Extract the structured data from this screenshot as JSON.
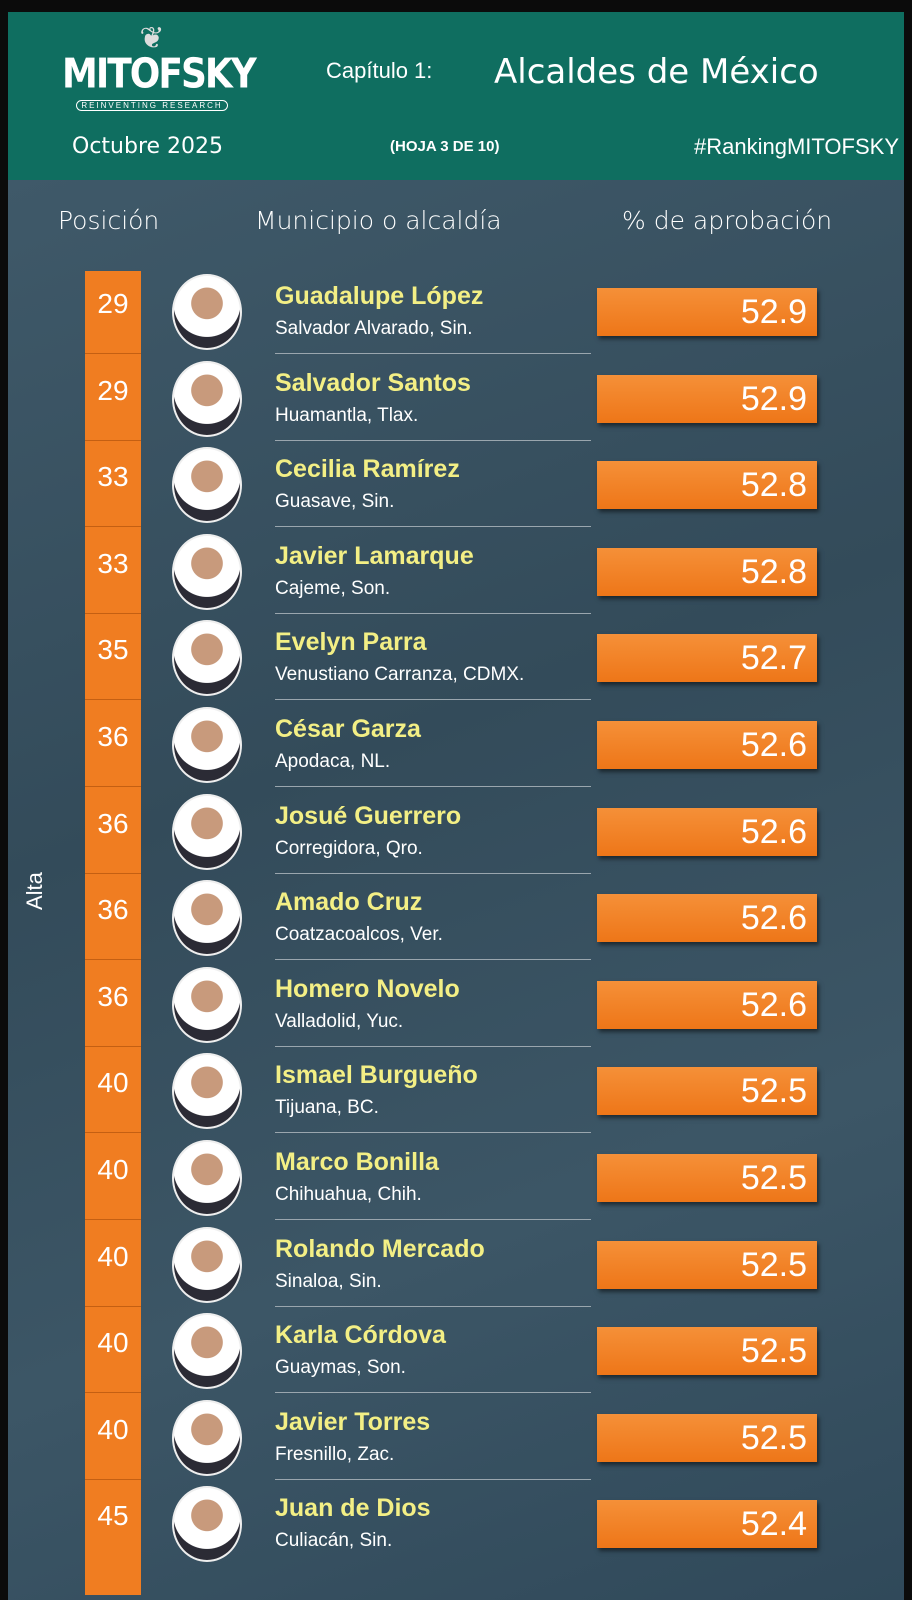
{
  "header": {
    "logo_text": "MITOFSKY",
    "logo_tagline": "REINVENTING RESEARCH",
    "chapter": "Capítulo 1:",
    "title": "Alcaldes de México",
    "date": "Octubre  2025",
    "sheet": "(HOJA 3 DE 10)",
    "hashtag": "#RankingMITOFSKY"
  },
  "columns": {
    "position": "Posición",
    "municipality": "Municipio o alcaldía",
    "approval": "% de aprobación"
  },
  "side_label": "Alta",
  "colors": {
    "header": "#0f6e60",
    "accent": "#f07d21",
    "name": "#f3ef85"
  },
  "rows": [
    {
      "position": "29",
      "name": "Guadalupe López",
      "place": "Salvador Alvarado, Sin.",
      "approval": "52.9"
    },
    {
      "position": "29",
      "name": "Salvador Santos",
      "place": "Huamantla, Tlax.",
      "approval": "52.9"
    },
    {
      "position": "33",
      "name": "Cecilia Ramírez",
      "place": "Guasave, Sin.",
      "approval": "52.8"
    },
    {
      "position": "33",
      "name": "Javier Lamarque",
      "place": "Cajeme, Son.",
      "approval": "52.8"
    },
    {
      "position": "35",
      "name": "Evelyn Parra",
      "place": "Venustiano Carranza, CDMX.",
      "approval": "52.7"
    },
    {
      "position": "36",
      "name": "César Garza",
      "place": "Apodaca, NL.",
      "approval": "52.6"
    },
    {
      "position": "36",
      "name": "Josué Guerrero",
      "place": "Corregidora, Qro.",
      "approval": "52.6"
    },
    {
      "position": "36",
      "name": "Amado Cruz",
      "place": "Coatzacoalcos, Ver.",
      "approval": "52.6"
    },
    {
      "position": "36",
      "name": "Homero Novelo",
      "place": "Valladolid, Yuc.",
      "approval": "52.6"
    },
    {
      "position": "40",
      "name": "Ismael Burgueño",
      "place": "Tijuana, BC.",
      "approval": "52.5"
    },
    {
      "position": "40",
      "name": "Marco Bonilla",
      "place": "Chihuahua, Chih.",
      "approval": "52.5"
    },
    {
      "position": "40",
      "name": "Rolando Mercado",
      "place": "Sinaloa, Sin.",
      "approval": "52.5"
    },
    {
      "position": "40",
      "name": "Karla Córdova",
      "place": "Guaymas, Son.",
      "approval": "52.5"
    },
    {
      "position": "40",
      "name": "Javier Torres",
      "place": "Fresnillo, Zac.",
      "approval": "52.5"
    },
    {
      "position": "45",
      "name": "Juan de Dios",
      "place": "Culiacán, Sin.",
      "approval": "52.4"
    }
  ]
}
